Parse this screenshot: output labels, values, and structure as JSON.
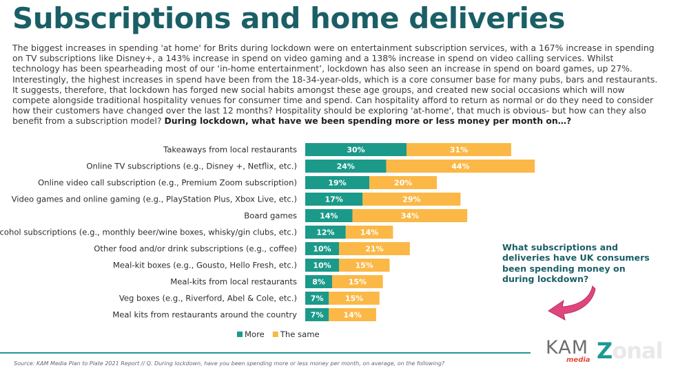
{
  "title": "Subscriptions and home deliveries",
  "intro": {
    "body": "The biggest increases in spending 'at home' for Brits during lockdown were on entertainment subscription services, with a 167% increase in spending on TV subscriptions like Disney+, a 143% increase in spend on video gaming and a 138% increase in spend on video calling services. Whilst technology has been spearheading most of our ‘in-home entertainment’, lockdown has also seen an increase in spend on board games, up 27%. Interestingly, the highest increases in spend have been from the 18-34-year-olds, which is a core consumer base for many pubs, bars and restaurants. It suggests, therefore, that lockdown has forged new social habits amongst these age groups, and created new social occasions which will now compete alongside traditional hospitality venues for consumer time and spend. Can hospitality afford to return as normal or do they need to consider how their customers have changed over the last 12 months? Hospitality should be exploring 'at-home', that much is obvious- but how can they also benefit from a subscription model?",
    "question": "During lockdown, what have we been spending more or less money per month on…?"
  },
  "chart_data": {
    "type": "bar",
    "orientation": "horizontal",
    "stacked": true,
    "categories": [
      "Takeaways from local restaurants",
      "Online TV subscriptions (e.g., Disney +, Netflix, etc.)",
      "Online video call subscription (e.g., Premium Zoom subscription)",
      "Video games and online gaming (e.g., PlayStation Plus, Xbox Live, etc.)",
      "Board games",
      "Alcohol subscriptions (e.g., monthly beer/wine boxes, whisky/gin clubs, etc.)",
      "Other food and/or drink subscriptions (e.g., coffee)",
      "Meal-kit boxes (e.g., Gousto, Hello Fresh, etc.)",
      "Meal-kits from local restaurants",
      "Veg boxes (e.g., Riverford, Abel & Cole, etc.)",
      "Meal kits from restaurants around the country"
    ],
    "series": [
      {
        "name": "More",
        "color": "#1b9a8a",
        "values": [
          30,
          24,
          19,
          17,
          14,
          12,
          10,
          10,
          8,
          7,
          7
        ]
      },
      {
        "name": "The same",
        "color": "#fbb847",
        "values": [
          31,
          44,
          20,
          29,
          34,
          14,
          21,
          15,
          15,
          15,
          14
        ]
      }
    ],
    "value_suffix": "%",
    "legend_position": "bottom"
  },
  "callout": {
    "text": "What subscriptions and deliveries have UK consumers been spending money on during lockdown?"
  },
  "source": "Source: KAM Media Plan to Plate 2021 Report // Q. During lockdown, have you been spending more or less money per month, on average, on the following?",
  "logos": {
    "kam": "KAM",
    "media": "media",
    "zonal_first": "Z",
    "zonal_rest": "onal"
  }
}
